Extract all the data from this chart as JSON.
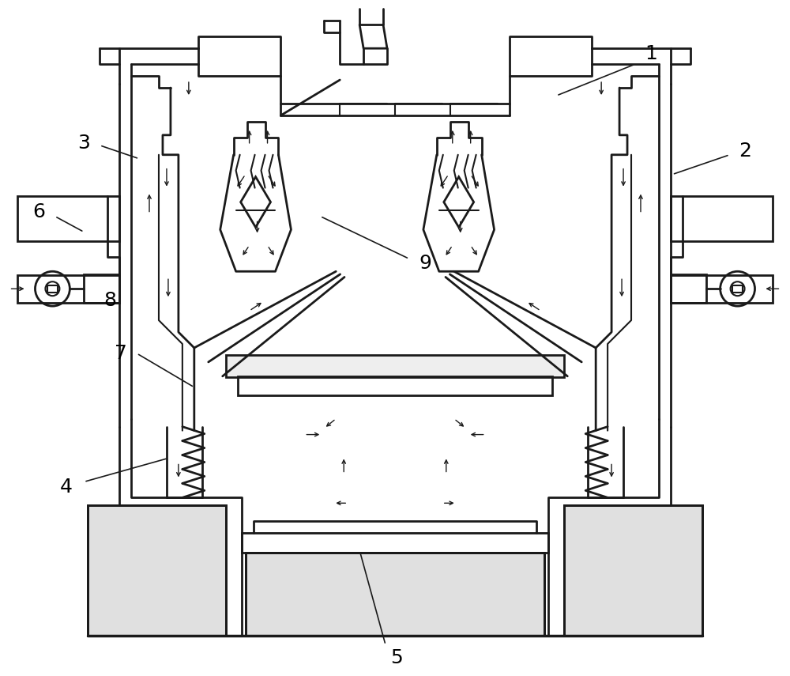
{
  "bg_color": "#ffffff",
  "line_color": "#1a1a1a",
  "line_width": 1.5,
  "label_fontsize": 18
}
